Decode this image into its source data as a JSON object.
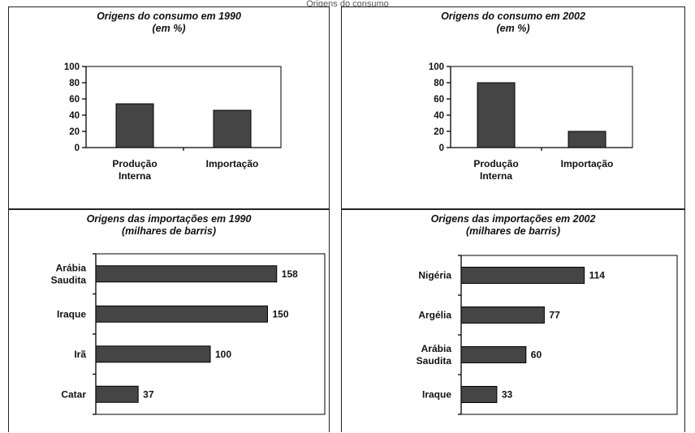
{
  "caption": "Origens do consumo",
  "colors": {
    "bar": "#454545"
  },
  "chart_data": [
    {
      "type": "bar",
      "title": "Origens do consumo em 1990",
      "subtitle": "(em %)",
      "categories": [
        "Produção|Interna",
        "Importação"
      ],
      "values": [
        54,
        46
      ],
      "ylim": [
        0,
        100
      ],
      "yticks": [
        0,
        20,
        40,
        60,
        80,
        100
      ],
      "grid": false
    },
    {
      "type": "bar",
      "title": "Origens do consumo em 2002",
      "subtitle": "(em %)",
      "categories": [
        "Produção|Interna",
        "Importação"
      ],
      "values": [
        80,
        20
      ],
      "ylim": [
        0,
        100
      ],
      "yticks": [
        0,
        20,
        40,
        60,
        80,
        100
      ],
      "grid": false
    },
    {
      "type": "bar",
      "orientation": "horizontal",
      "title": "Origens das importações em 1990",
      "subtitle": "(milhares de barris)",
      "categories": [
        "Arábia|Saudita",
        "Iraque",
        "Irã",
        "Catar"
      ],
      "values": [
        158,
        150,
        100,
        37
      ],
      "xlim": [
        0,
        200
      ],
      "grid": false
    },
    {
      "type": "bar",
      "orientation": "horizontal",
      "title": "Origens das importações em 2002",
      "subtitle": "(milhares de barris)",
      "categories": [
        "Nigéria",
        "Argélia",
        "Arábia|Saudita",
        "Iraque"
      ],
      "values": [
        114,
        77,
        60,
        33
      ],
      "xlim": [
        0,
        200
      ],
      "grid": false
    }
  ]
}
